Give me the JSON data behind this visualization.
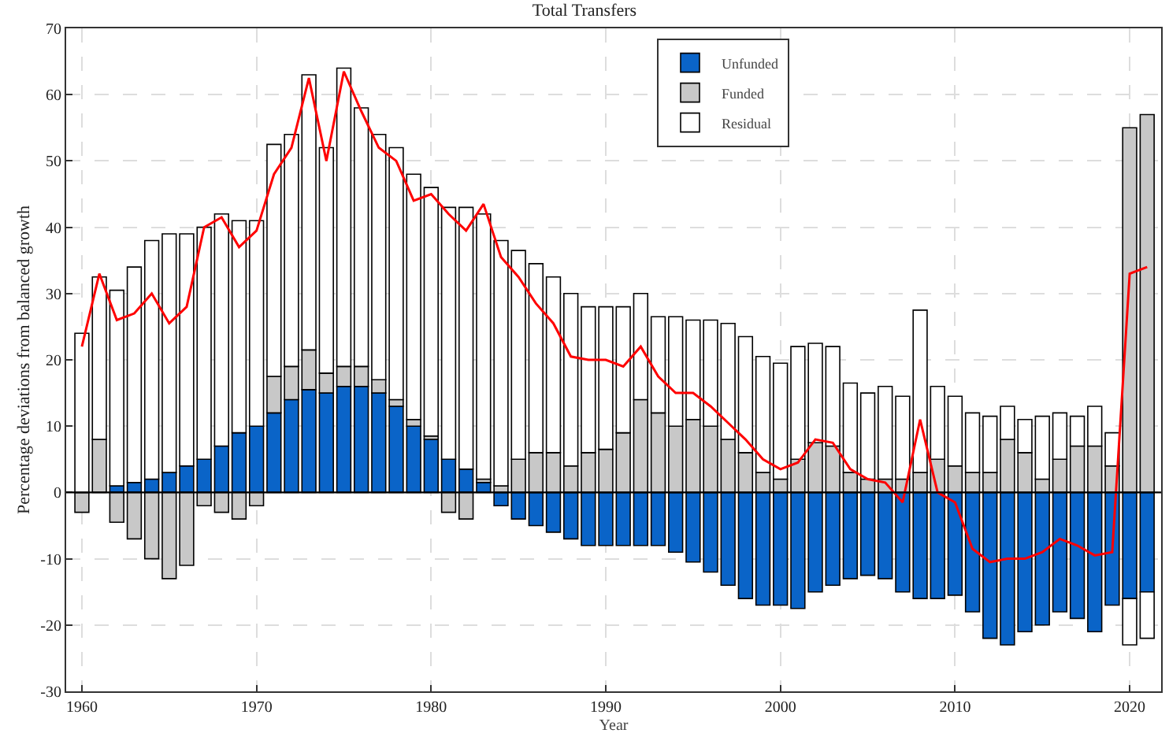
{
  "chart_data": {
    "type": "bar",
    "title": "Total Transfers",
    "xlabel": "Year",
    "ylabel": "Percentage deviations from balanced growth",
    "x": [
      1960,
      1961,
      1962,
      1963,
      1964,
      1965,
      1966,
      1967,
      1968,
      1969,
      1970,
      1971,
      1972,
      1973,
      1974,
      1975,
      1976,
      1977,
      1978,
      1979,
      1980,
      1981,
      1982,
      1983,
      1984,
      1985,
      1986,
      1987,
      1988,
      1989,
      1990,
      1991,
      1992,
      1993,
      1994,
      1995,
      1996,
      1997,
      1998,
      1999,
      2000,
      2001,
      2002,
      2003,
      2004,
      2005,
      2006,
      2007,
      2008,
      2009,
      2010,
      2011,
      2012,
      2013,
      2014,
      2015,
      2016,
      2017,
      2018,
      2019,
      2020,
      2021
    ],
    "stacked": true,
    "series": [
      {
        "name": "Unfunded",
        "color": "#0a64c8",
        "values": [
          0,
          null,
          1,
          1.5,
          2,
          3,
          4,
          5,
          7,
          9,
          10,
          12,
          14,
          15.5,
          15,
          16,
          16,
          15,
          13,
          10,
          8,
          5,
          3.5,
          1.5,
          -2,
          -4,
          -5,
          -6,
          -7,
          -8,
          -8,
          -8,
          -8,
          -8,
          -9,
          -10.5,
          -12,
          -14,
          -16,
          -17,
          -17,
          -17.5,
          -15,
          -14,
          -13,
          -12.5,
          -13,
          -15,
          -16,
          -16,
          -15.5,
          -18,
          -22,
          -23,
          -21,
          -20,
          -18,
          -19,
          -21,
          -17,
          -16,
          -15
        ]
      },
      {
        "name": "Funded",
        "color": "#c8c8c8",
        "values": [
          -3,
          8,
          -4.5,
          -7,
          -10,
          -13,
          -11,
          -2,
          -3,
          -4,
          -2,
          5.5,
          5,
          6,
          3,
          3,
          3,
          2,
          1,
          1,
          0.5,
          -3,
          -4,
          0.5,
          1,
          5,
          6,
          6,
          4,
          6,
          6.5,
          9,
          14,
          12,
          10,
          11,
          10,
          8,
          6,
          3,
          2,
          5,
          7.5,
          7,
          3,
          2,
          2,
          2,
          3,
          5,
          4,
          3,
          3,
          8,
          6,
          2,
          5,
          7,
          7,
          4,
          55,
          57
        ]
      },
      {
        "name": "Residual",
        "color": "#ffffff",
        "values": [
          24,
          24.5,
          29.5,
          32.5,
          36,
          36,
          35,
          35,
          35,
          32,
          31,
          35,
          35,
          41.5,
          34,
          45,
          39,
          37,
          38,
          37,
          37.5,
          38,
          39.5,
          40,
          37,
          31.5,
          28.5,
          26.5,
          26,
          22,
          21.5,
          19,
          16,
          14.5,
          16.5,
          15,
          16,
          17.5,
          17.5,
          17.5,
          17.5,
          17,
          15,
          15,
          13.5,
          13,
          14,
          12.5,
          24.5,
          11,
          10.5,
          9,
          8.5,
          5,
          5,
          9.5,
          7,
          4.5,
          6,
          5,
          -7,
          -7
        ]
      },
      {
        "type": "line",
        "color": "#ff0000",
        "values": [
          22,
          33,
          26,
          27,
          30,
          25.5,
          28,
          40,
          41.5,
          37,
          39.5,
          48,
          52,
          62.5,
          50,
          63.5,
          57.5,
          52,
          50,
          44,
          45,
          42,
          39.5,
          43.5,
          35.5,
          32.5,
          28.5,
          25.5,
          20.5,
          20,
          20,
          19,
          22,
          17.5,
          15,
          15,
          13,
          10.5,
          8,
          5,
          3.5,
          4.5,
          8,
          7.5,
          3.5,
          2,
          1.5,
          -1.5,
          11,
          0,
          -1.5,
          -8.5,
          -10.5,
          -10,
          -10,
          -9,
          -7,
          -8,
          -9.5,
          -9,
          33,
          34
        ]
      }
    ],
    "xlim": [
      1959.1,
      2021.8
    ],
    "xticks": [
      1960,
      1970,
      1980,
      1990,
      2000,
      2010,
      2020
    ],
    "ylim": [
      -30,
      70
    ],
    "yticks": [
      -30,
      -20,
      -10,
      0,
      10,
      20,
      30,
      40,
      50,
      60,
      70
    ],
    "grid": true,
    "legend": "top"
  }
}
